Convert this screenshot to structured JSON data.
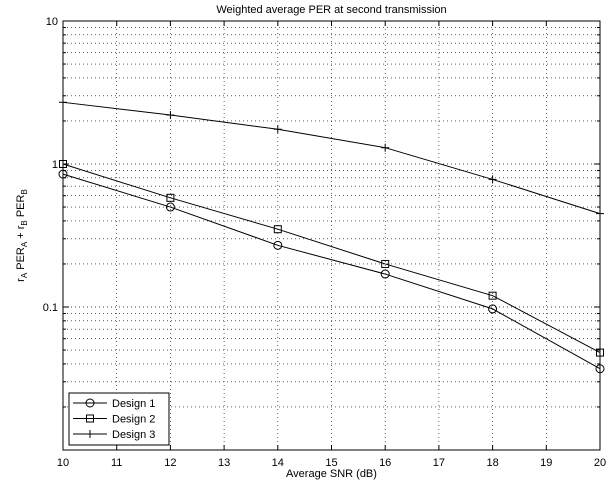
{
  "chart_data": {
    "type": "line",
    "title": "Weighted average PER at second transmission",
    "xlabel": "Average SNR (dB)",
    "ylabel": {
      "text": "r",
      "parts": [
        {
          "t": "r",
          "sub": false
        },
        {
          "t": "A",
          "sub": true
        },
        {
          "t": " PER",
          "sub": false
        },
        {
          "t": "A",
          "sub": true
        },
        {
          "t": " + r",
          "sub": false
        },
        {
          "t": "B",
          "sub": true
        },
        {
          "t": " PER",
          "sub": false
        },
        {
          "t": "B",
          "sub": true
        }
      ]
    },
    "xlim": [
      10,
      20
    ],
    "ylim": [
      0.01,
      10
    ],
    "yscale": "log",
    "grid": true,
    "x_ticks": [
      10,
      11,
      12,
      13,
      14,
      15,
      16,
      17,
      18,
      19,
      20
    ],
    "x_tick_labels": [
      "10",
      "11",
      "12",
      "13",
      "14",
      "15",
      "16",
      "17",
      "18",
      "19",
      "20"
    ],
    "y_ticks": [
      0.1,
      1,
      10
    ],
    "y_tick_labels": [
      "0.1",
      "1",
      "10"
    ],
    "legend_position": "bottom-left",
    "series": [
      {
        "name": "Design 1",
        "marker": "circle",
        "x": [
          10,
          12,
          14,
          16,
          18,
          20
        ],
        "y": [
          0.85,
          0.5,
          0.27,
          0.17,
          0.097,
          0.037
        ]
      },
      {
        "name": "Design 2",
        "marker": "square",
        "x": [
          10,
          12,
          14,
          16,
          18,
          20
        ],
        "y": [
          1.0,
          0.58,
          0.35,
          0.2,
          0.12,
          0.048
        ]
      },
      {
        "name": "Design 3",
        "marker": "plus",
        "x": [
          10,
          12,
          14,
          16,
          18,
          20
        ],
        "y": [
          2.7,
          2.2,
          1.75,
          1.3,
          0.78,
          0.45
        ]
      }
    ]
  }
}
